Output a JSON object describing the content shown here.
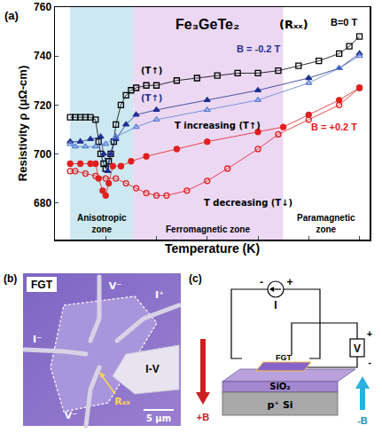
{
  "chart_data": {
    "type": "scatter",
    "panel_label": "(a)",
    "title": "Fe₃GeTe₂",
    "subtitle": "(Rₓₓ)",
    "x_label": "Temperature (K)",
    "y_label": "Resistivity ρ (μΩ-cm)",
    "xlim": [
      0,
      310
    ],
    "xticks": [
      50,
      100,
      150,
      200,
      250,
      300
    ],
    "ylim": [
      665,
      760
    ],
    "yticks": [
      680,
      700,
      720,
      740,
      760
    ],
    "tick_labels": "y",
    "grid": false,
    "zones": [
      {
        "label": "Anisotropic zone",
        "x0": 15,
        "x1": 77,
        "color": "#cde8f0"
      },
      {
        "label": "Ferromagnetic zone",
        "x0": 77,
        "x1": 225,
        "color": "#ecd8f3"
      },
      {
        "label": "Paramagnetic zone",
        "x0": 225,
        "x1": 310,
        "color": "#ffffff"
      }
    ],
    "annotations": [
      "(T↑)",
      "(T↑)",
      "T increasing (T↑)",
      "T decreasing (T↓)"
    ],
    "series": [
      {
        "name": "B=0 T",
        "color": "#000000",
        "marker": "square-open",
        "x": [
          15,
          20,
          25,
          30,
          35,
          40,
          43,
          45,
          48,
          50,
          53,
          55,
          58,
          60,
          65,
          70,
          75,
          80,
          90,
          100,
          120,
          140,
          160,
          180,
          200,
          220,
          240,
          260,
          280,
          290,
          300
        ],
        "values": [
          715,
          715,
          715,
          715,
          715,
          714,
          705,
          700,
          696,
          694,
          697,
          700,
          705,
          712,
          720,
          724,
          726,
          727,
          728,
          728,
          730,
          731,
          732,
          733,
          733,
          734,
          736,
          738,
          741,
          744,
          748
        ]
      },
      {
        "name": "B = -0.2 T",
        "color": "#1f2f8f",
        "marker": "triangle-up",
        "x": [
          15,
          25,
          35,
          45,
          48,
          52,
          55,
          60,
          70,
          80,
          100,
          150,
          200,
          250,
          280,
          300
        ],
        "values": [
          705,
          705,
          706,
          707,
          700,
          693,
          700,
          706,
          712,
          716,
          718,
          722,
          726,
          731,
          735,
          741
        ]
      },
      {
        "name": "B = -0.2 T",
        "color": "#5b7fd6",
        "marker": "triangle-up-open",
        "x": [
          300,
          280,
          250,
          200,
          150,
          100,
          80,
          60,
          50,
          40,
          30,
          20,
          15
        ],
        "values": [
          740,
          735,
          729,
          722,
          718,
          714,
          711,
          707,
          704,
          703,
          703,
          703,
          704
        ]
      },
      {
        "name": "B = +0.2 T",
        "color": "#e02020",
        "marker": "circle",
        "x": [
          15,
          25,
          35,
          40,
          43,
          47,
          50,
          53,
          57,
          65,
          75,
          90,
          120,
          150,
          200,
          225,
          250,
          280,
          300
        ],
        "values": [
          696,
          696,
          696,
          696,
          690,
          685,
          683,
          688,
          695,
          695,
          697,
          699,
          702,
          705,
          709,
          711,
          716,
          722,
          727
        ]
      },
      {
        "name": "B = +0.2 T",
        "color": "#e02020",
        "marker": "circle-open",
        "x": [
          300,
          280,
          250,
          220,
          200,
          170,
          150,
          130,
          110,
          100,
          90,
          80,
          70,
          60,
          50,
          40,
          30,
          20,
          15
        ],
        "values": [
          727,
          720,
          714,
          708,
          702,
          694,
          689,
          685,
          683,
          683,
          684,
          686,
          688,
          690,
          690,
          691,
          692,
          693,
          693
        ]
      }
    ]
  },
  "panel_b": {
    "panel_label": "(b)",
    "labels": {
      "fgt": "FGT",
      "v_top": "V⁻",
      "i_plus": "I⁺",
      "i_minus": "I⁻",
      "iv": "I-V",
      "v_bottom": "V⁻",
      "rxx": "Rₓₓ"
    },
    "scale_bar": "5 μm"
  },
  "panel_c": {
    "panel_label": "(c)",
    "source": "I",
    "source_signs": [
      "-",
      "+"
    ],
    "meter": "V",
    "meter_signs": [
      "+",
      "-"
    ],
    "flake": "FGT",
    "oxide": "SiO₂",
    "substrate": "p⁺ Si",
    "field_down": "+B",
    "field_up": "-B"
  }
}
